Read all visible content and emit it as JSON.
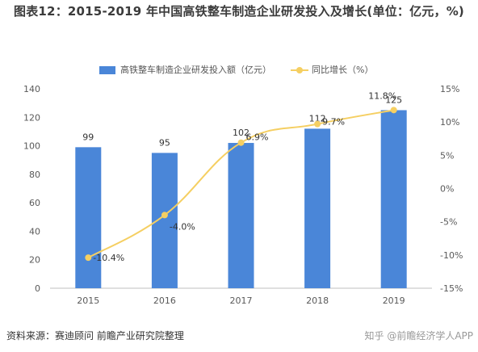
{
  "title": "图表12：2015-2019 年中国高铁整车制造企业研发投入及增长(单位：亿元，%)",
  "source": "资料来源：赛迪顾问 前瞻产业研究院整理",
  "watermark_corner": "知乎 @前瞻经济学人APP",
  "colors": {
    "bar": "#4a86d8",
    "line": "#f5cf62",
    "dot": "#f5cf62"
  },
  "chart_data": {
    "type": "bar+line",
    "categories": [
      "2015",
      "2016",
      "2017",
      "2018",
      "2019"
    ],
    "series": [
      {
        "name": "高铁整车制造企业研发投入额（亿元）",
        "type": "bar",
        "axis": "left",
        "values": [
          99,
          95,
          102,
          112,
          125
        ],
        "labels": [
          "99",
          "95",
          "102",
          "112",
          "125"
        ]
      },
      {
        "name": "同比增长（%）",
        "type": "line",
        "axis": "right",
        "values": [
          -10.4,
          -4.0,
          6.9,
          9.7,
          11.8
        ],
        "labels": [
          "-10.4%",
          "-4.0%",
          "6.9%",
          "9.7%",
          "11.8%"
        ]
      }
    ],
    "y_left": {
      "min": 0,
      "max": 140,
      "ticks": [
        "0",
        "20",
        "40",
        "60",
        "80",
        "100",
        "120",
        "140"
      ]
    },
    "y_right": {
      "min": -15,
      "max": 15,
      "ticks": [
        "-15%",
        "-10%",
        "-5%",
        "0%",
        "5%",
        "10%",
        "15%"
      ]
    },
    "grid": false,
    "legend_position": "top"
  }
}
